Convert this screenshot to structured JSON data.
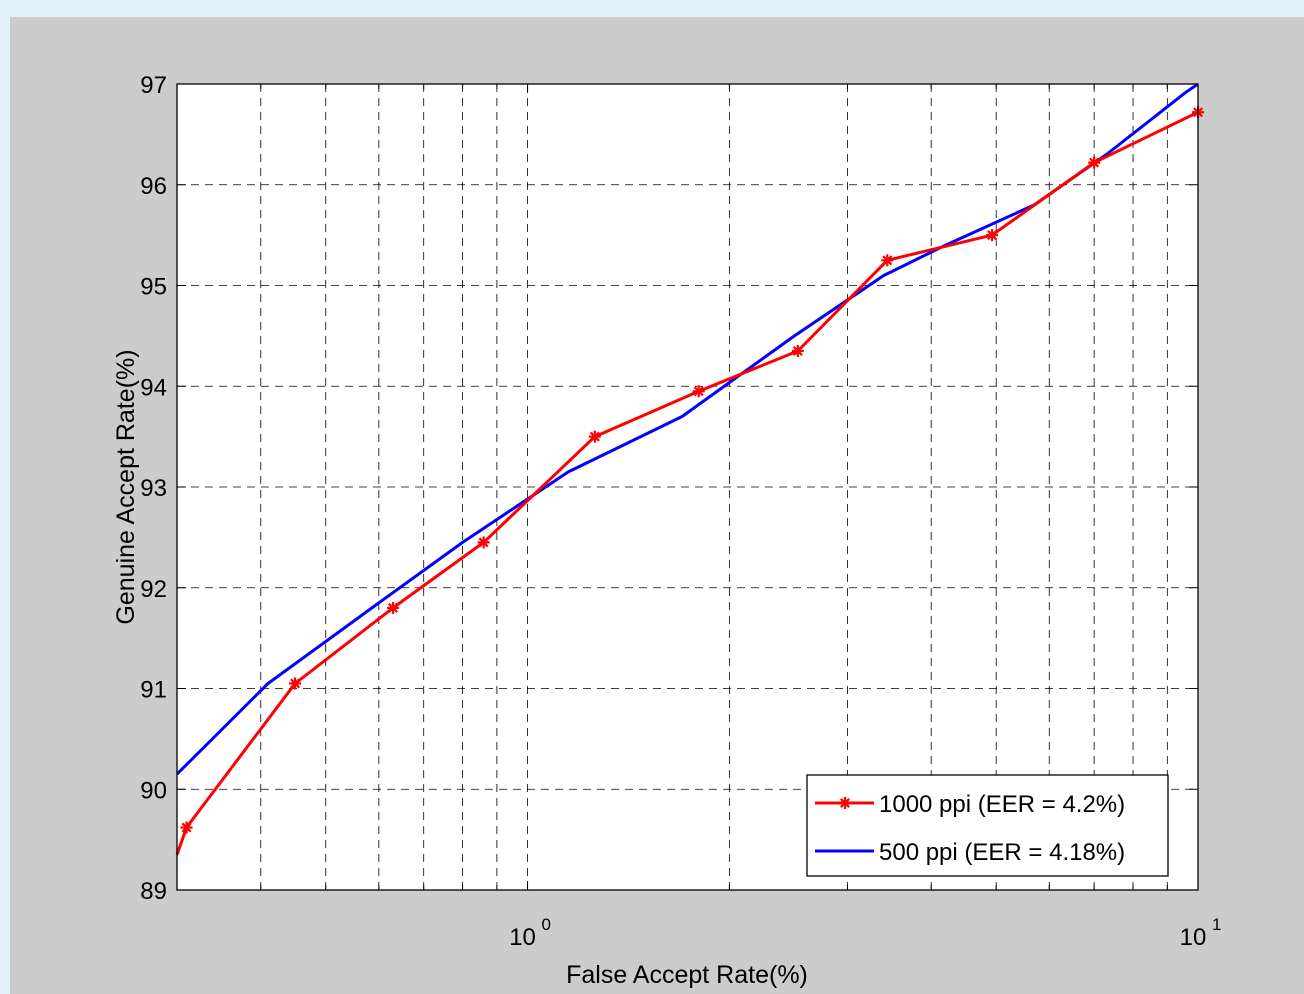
{
  "chart_data": {
    "type": "line",
    "title": "",
    "xlabel": "False Accept Rate(%)",
    "ylabel": "Genuine Accept Rate(%)",
    "xscale": "log",
    "xlim": [
      0.3,
      10
    ],
    "ylim": [
      89,
      97
    ],
    "xticks": [
      {
        "value": 1,
        "base": "10",
        "exp": "0"
      },
      {
        "value": 10,
        "base": "10",
        "exp": "1"
      }
    ],
    "yticks": [
      "89",
      "90",
      "91",
      "92",
      "93",
      "94",
      "95",
      "96",
      "97"
    ],
    "grid": true,
    "legend_position": "bottom-right",
    "series": [
      {
        "name": "1000 ppi (EER = 4.2%)",
        "color": "#ff0000",
        "marker": "asterisk",
        "x": [
          0.3,
          0.31,
          0.45,
          0.63,
          0.86,
          1.26,
          1.8,
          2.53,
          3.44,
          4.93,
          7.0,
          10.0
        ],
        "y": [
          89.35,
          89.62,
          91.05,
          91.8,
          92.45,
          93.5,
          93.95,
          94.35,
          95.25,
          95.5,
          96.22,
          96.72
        ]
      },
      {
        "name": "500 ppi (EER = 4.18%)",
        "color": "#0000ff",
        "marker": "none",
        "x": [
          0.3,
          0.41,
          0.6,
          0.8,
          1.15,
          1.7,
          2.5,
          3.4,
          4.2,
          5.7,
          7.3,
          9.6,
          10.0
        ],
        "y": [
          90.15,
          91.05,
          91.85,
          92.45,
          93.15,
          93.7,
          94.5,
          95.1,
          95.4,
          95.8,
          96.3,
          96.92,
          97.0
        ]
      }
    ]
  }
}
